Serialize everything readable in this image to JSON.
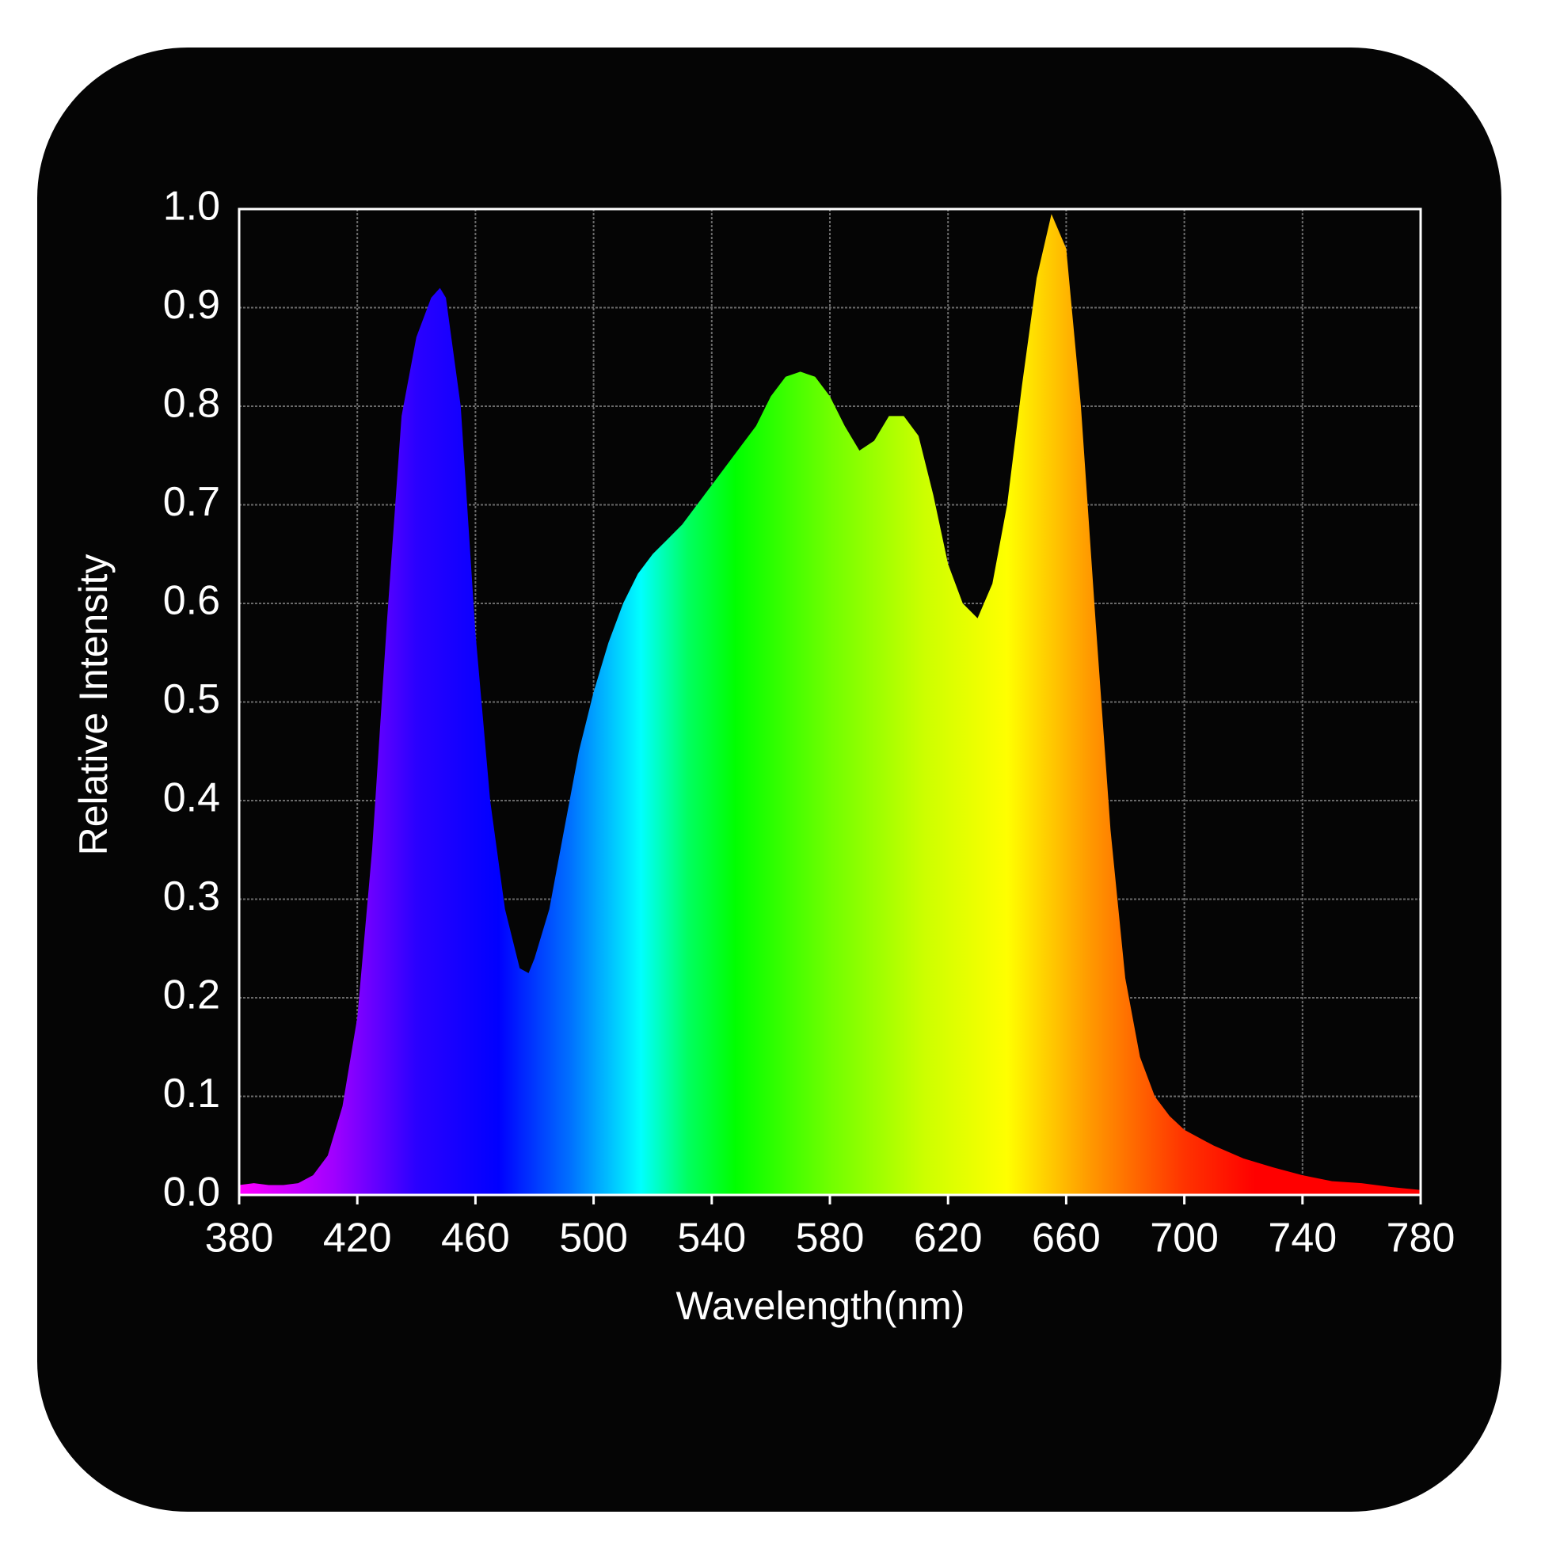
{
  "chart_data": {
    "type": "area",
    "x_label": "Wavelength(nm)",
    "y_label": "Relative Intensity",
    "x": [
      380,
      385,
      390,
      395,
      400,
      405,
      410,
      415,
      420,
      425,
      430,
      435,
      440,
      445,
      448,
      450,
      455,
      460,
      465,
      470,
      475,
      478,
      480,
      485,
      490,
      495,
      500,
      505,
      510,
      515,
      520,
      525,
      530,
      535,
      540,
      545,
      550,
      555,
      560,
      565,
      570,
      575,
      580,
      585,
      590,
      595,
      600,
      605,
      610,
      615,
      620,
      625,
      630,
      635,
      640,
      645,
      650,
      655,
      660,
      665,
      670,
      675,
      680,
      685,
      690,
      695,
      700,
      710,
      720,
      730,
      740,
      750,
      760,
      770,
      780
    ],
    "values": [
      0.01,
      0.012,
      0.01,
      0.01,
      0.012,
      0.02,
      0.04,
      0.09,
      0.18,
      0.35,
      0.58,
      0.79,
      0.87,
      0.91,
      0.92,
      0.91,
      0.8,
      0.57,
      0.4,
      0.29,
      0.23,
      0.225,
      0.24,
      0.29,
      0.37,
      0.45,
      0.51,
      0.56,
      0.6,
      0.63,
      0.65,
      0.665,
      0.68,
      0.7,
      0.72,
      0.74,
      0.76,
      0.78,
      0.81,
      0.83,
      0.835,
      0.83,
      0.81,
      0.78,
      0.755,
      0.765,
      0.79,
      0.79,
      0.77,
      0.71,
      0.64,
      0.6,
      0.585,
      0.62,
      0.7,
      0.82,
      0.93,
      0.995,
      0.96,
      0.8,
      0.58,
      0.37,
      0.22,
      0.14,
      0.1,
      0.08,
      0.066,
      0.05,
      0.037,
      0.028,
      0.02,
      0.014,
      0.012,
      0.008,
      0.005
    ],
    "xlim": [
      380,
      780
    ],
    "xticks": [
      380,
      420,
      460,
      500,
      540,
      580,
      620,
      660,
      700,
      740,
      780
    ],
    "ylim": [
      0,
      1
    ],
    "yticks": [
      {
        "value": 0,
        "label": "0.0"
      },
      0.1,
      0.2,
      0.3,
      0.4,
      0.5,
      0.6,
      0.7,
      0.8,
      0.9,
      {
        "value": 1,
        "label": "1.0"
      }
    ],
    "grid": true
  }
}
